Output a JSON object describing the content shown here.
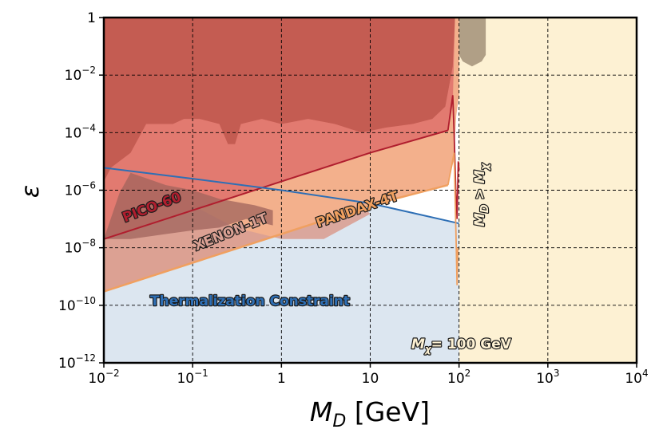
{
  "chart_data": {
    "type": "area",
    "xlabel": "M_D [GeV]",
    "ylabel": "ε",
    "xscale": "log",
    "yscale": "log",
    "xlim": [
      0.01,
      10000
    ],
    "ylim": [
      1e-12,
      1
    ],
    "grid": true,
    "x_ticks": [
      {
        "value": 0.01,
        "base": "10",
        "exp": "−2"
      },
      {
        "value": 0.1,
        "base": "10",
        "exp": "−1"
      },
      {
        "value": 1,
        "base": "1",
        "exp": ""
      },
      {
        "value": 10,
        "base": "10",
        "exp": ""
      },
      {
        "value": 100,
        "base": "10",
        "exp": "2"
      },
      {
        "value": 1000,
        "base": "10",
        "exp": "3"
      },
      {
        "value": 10000,
        "base": "10",
        "exp": "4"
      }
    ],
    "y_ticks": [
      {
        "value": 1,
        "base": "1",
        "exp": ""
      },
      {
        "value": 0.01,
        "base": "10",
        "exp": "−2"
      },
      {
        "value": 0.0001,
        "base": "10",
        "exp": "−4"
      },
      {
        "value": 1e-06,
        "base": "10",
        "exp": "−6"
      },
      {
        "value": 1e-08,
        "base": "10",
        "exp": "−8"
      },
      {
        "value": 1e-10,
        "base": "10",
        "exp": "−10"
      },
      {
        "value": 1e-12,
        "base": "10",
        "exp": "−12"
      }
    ],
    "colors": {
      "thermalization": "#dce6f0",
      "md_gt_mx": "#fdf1d3",
      "pandax": "#f3b08c",
      "xenon": "#d9a093",
      "pico": "#e27a70",
      "top_excluded": "#c45c52",
      "grey": "#b09f86",
      "dark_patch": "#a0645c",
      "pico_line": "#b01e2e",
      "pandax_line": "#f0a060",
      "thermal_line": "#2e6fb5"
    },
    "series": [
      {
        "name": "PICO-60",
        "x": [
          0.01,
          0.1,
          1,
          10,
          75
        ],
        "y": [
          2e-08,
          2e-07,
          2e-06,
          2e-05,
          0.00012
        ]
      },
      {
        "name": "PANDAX-4T",
        "x": [
          0.01,
          0.1,
          1,
          10,
          75
        ],
        "y": [
          3e-10,
          3e-09,
          3e-08,
          3e-07,
          1.5e-06
        ]
      },
      {
        "name": "XENON-1T",
        "x": [
          0.01,
          0.03,
          0.1,
          0.3,
          0.8
        ],
        "y": [
          3e-06,
          1.5e-06,
          4e-07,
          1e-07,
          3e-08
        ]
      },
      {
        "name": "Thermalization Constraint",
        "x": [
          0.01,
          0.1,
          1,
          10,
          100
        ],
        "y": [
          6e-06,
          2.5e-06,
          1e-06,
          3.5e-07,
          7e-08
        ]
      }
    ],
    "annotations": {
      "pico": "PICO-60",
      "xenon": "XENON-1T",
      "pandax": "PANDAX-4T",
      "thermal": "Thermalization Constraint",
      "md_gt_mx": {
        "m1": "M",
        "s1": "D",
        "rel": " > ",
        "m2": "M",
        "s2": "χ"
      },
      "mx": {
        "m": "M",
        "s": "χ",
        "rest": "= 100 GeV"
      }
    }
  }
}
